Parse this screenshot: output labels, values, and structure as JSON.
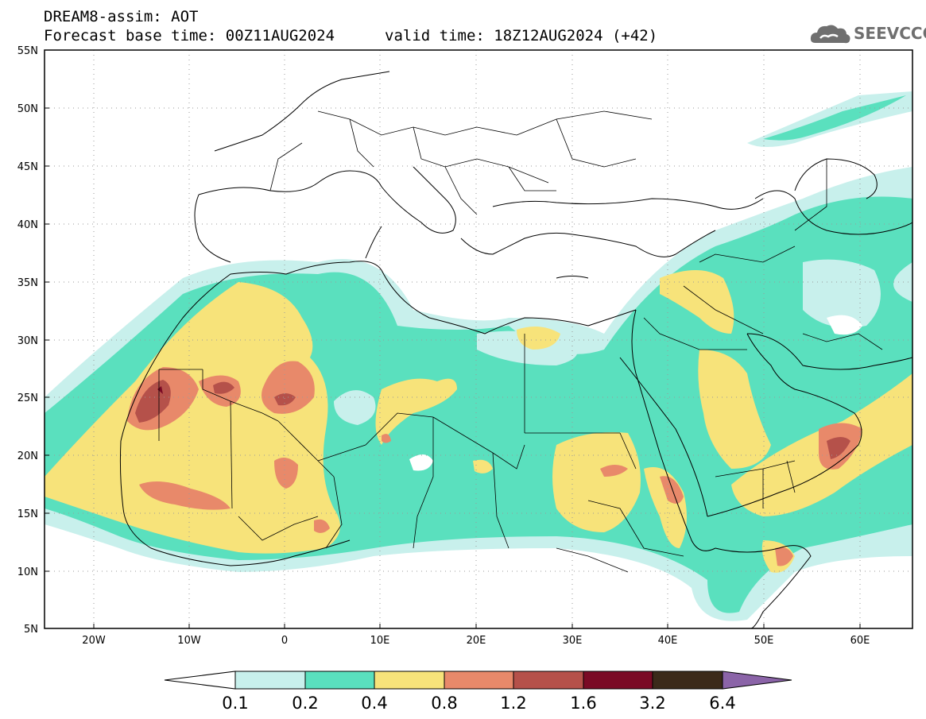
{
  "header": {
    "title": "DREAM8-assim: AOT",
    "base_time": "Forecast base time: 00Z11AUG2024",
    "valid_time": "valid time: 18Z12AUG2024 (+42)"
  },
  "logo": {
    "text": "SEEVCCC",
    "icon": "cloud-logo-icon",
    "color": "#6f6f6f"
  },
  "map": {
    "lat_labels": [
      "55N",
      "50N",
      "45N",
      "40N",
      "35N",
      "30N",
      "25N",
      "20N",
      "15N",
      "10N",
      "5N"
    ],
    "lon_labels": [
      "20W",
      "10W",
      "0",
      "10E",
      "20E",
      "30E",
      "40E",
      "50E",
      "60E"
    ],
    "lat_range": [
      5,
      55
    ],
    "lon_range": [
      -25,
      65
    ],
    "grid": "dotted"
  },
  "colorbar": {
    "labels": [
      "0.1",
      "0.2",
      "0.4",
      "0.8",
      "1.2",
      "1.6",
      "3.2",
      "6.4"
    ],
    "colors": [
      "#ffffff",
      "#c8f0ec",
      "#5ae0be",
      "#f7e37a",
      "#e8896a",
      "#b5514a",
      "#7a0a25",
      "#3b2a1a",
      "#8b64a8"
    ]
  },
  "palette": {
    "c1": "#c8f0ec",
    "c2": "#5ae0be",
    "c3": "#f7e37a",
    "c4": "#e8896a",
    "c5": "#b5514a",
    "c6": "#7a0a25"
  }
}
